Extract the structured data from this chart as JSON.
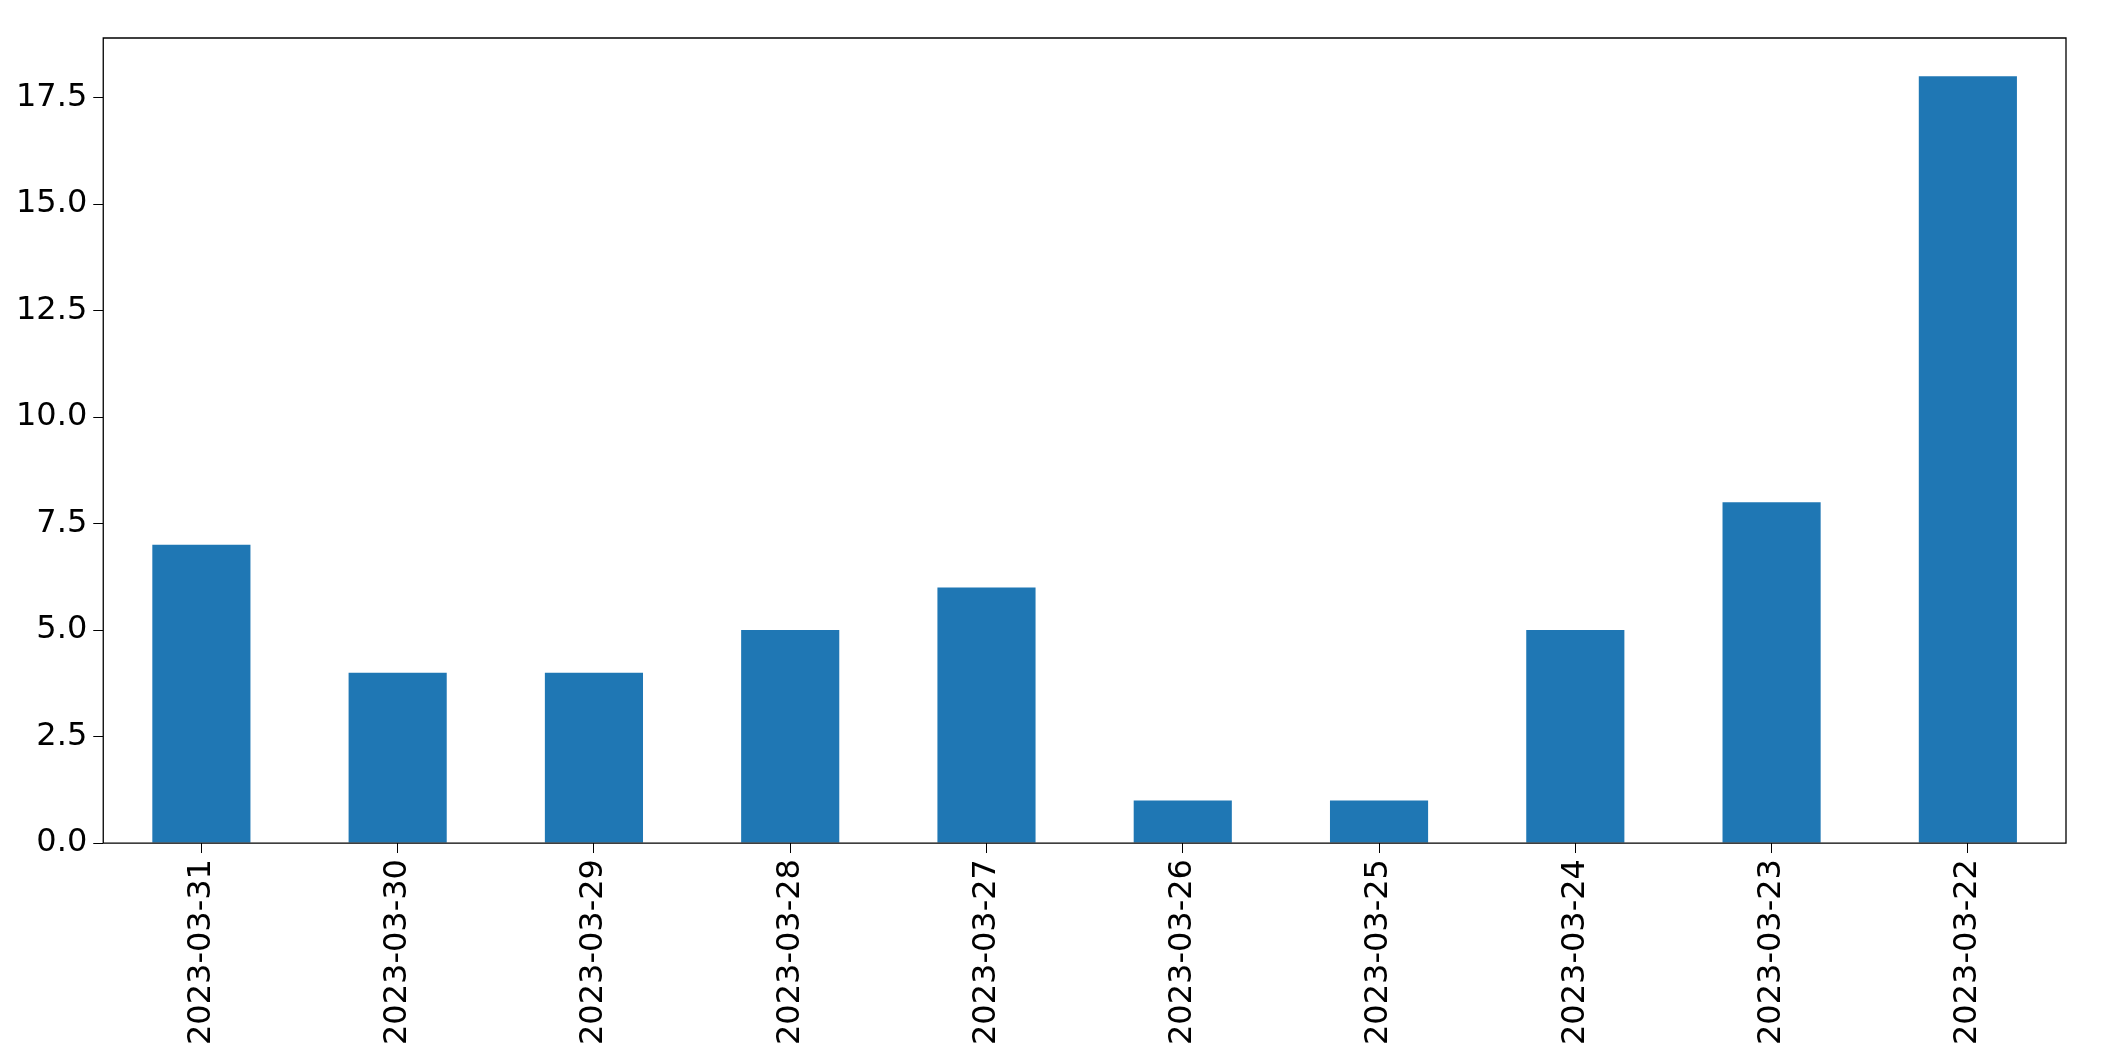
{
  "chart_data": {
    "type": "bar",
    "categories": [
      "2023-03-31",
      "2023-03-30",
      "2023-03-29",
      "2023-03-28",
      "2023-03-27",
      "2023-03-26",
      "2023-03-25",
      "2023-03-24",
      "2023-03-23",
      "2023-03-22"
    ],
    "values": [
      7,
      4,
      4,
      5,
      6,
      1,
      1,
      5,
      8,
      18
    ],
    "color": "#1f77b4",
    "ylim": [
      0,
      18.9
    ],
    "yticks": [
      {
        "value": 0,
        "label": "0.0"
      },
      {
        "value": 2.5,
        "label": "2.5"
      },
      {
        "value": 5,
        "label": "5.0"
      },
      {
        "value": 7.5,
        "label": "7.5"
      },
      {
        "value": 10,
        "label": "10.0"
      },
      {
        "value": 12.5,
        "label": "12.5"
      },
      {
        "value": 15,
        "label": "15.0"
      },
      {
        "value": 17.5,
        "label": "17.5"
      }
    ],
    "grid": false,
    "legend": false
  }
}
